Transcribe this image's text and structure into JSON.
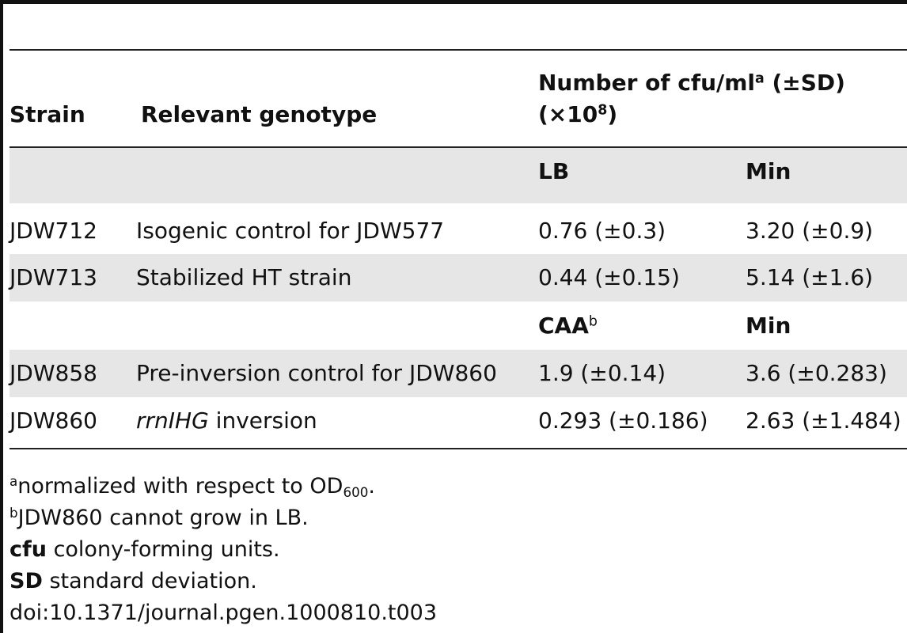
{
  "table": {
    "header": {
      "strain": "Strain",
      "genotype": "Relevant genotype",
      "cfu_title_prefix": "Number of cfu/ml",
      "cfu_title_sup": "a",
      "cfu_title_suffix": " (±SD)",
      "cfu_title_line2_prefix": "(×10",
      "cfu_title_line2_sup": "8",
      "cfu_title_line2_suffix": ")"
    },
    "subheader1": {
      "col1": "LB",
      "col2": "Min"
    },
    "group1_rows": [
      {
        "strain": "JDW712",
        "genotype": "Isogenic control for JDW577",
        "v1": "0.76 (±0.3)",
        "v2": "3.20 (±0.9)"
      },
      {
        "strain": "JDW713",
        "genotype": "Stabilized HT strain",
        "v1": "0.44 (±0.15)",
        "v2": "5.14 (±1.6)"
      }
    ],
    "subheader2": {
      "col1": "CAA",
      "col1_sup": "b",
      "col2": "Min"
    },
    "group2_rows": [
      {
        "strain": "JDW858",
        "genotype": "Pre-inversion control for JDW860",
        "v1": "1.9 (±0.14)",
        "v2": "3.6 (±0.283)"
      },
      {
        "strain": "JDW860",
        "genotype_italic": "rrnIHG",
        "genotype_rest": " inversion",
        "v1": "0.293 (±0.186)",
        "v2": "2.63 (±1.484)"
      }
    ]
  },
  "footnotes": {
    "a_mark": "a",
    "a_text": "normalized with respect to OD",
    "a_sub": "600",
    "a_end": ".",
    "b_mark": "b",
    "b_text": "JDW860 cannot grow in LB.",
    "cfu_term": "cfu",
    "cfu_text": " colony-forming units.",
    "sd_term": "SD",
    "sd_text": " standard deviation.",
    "doi": "doi:10.1371/journal.pgen.1000810.t003"
  }
}
